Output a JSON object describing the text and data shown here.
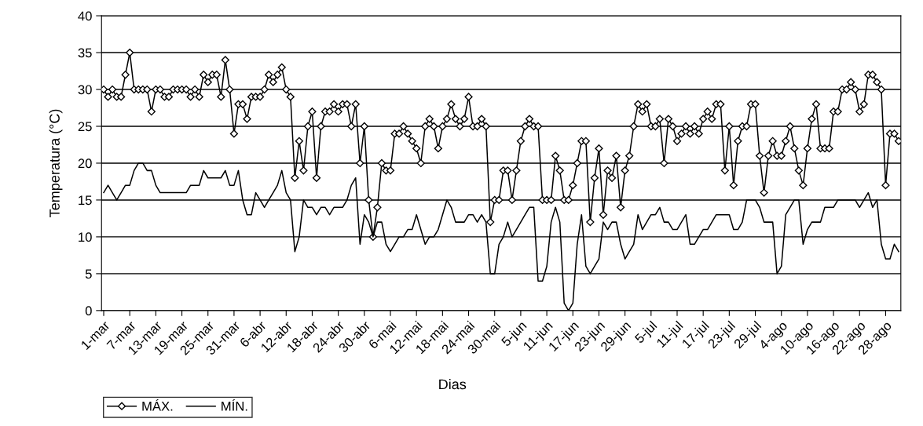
{
  "chart_data": {
    "type": "line",
    "ylabel": "Temperatura (°C)",
    "xlabel": "Dias",
    "categories": [
      "1-mar",
      null,
      null,
      null,
      null,
      null,
      "7-mar",
      null,
      null,
      null,
      null,
      null,
      "13-mar",
      null,
      null,
      null,
      null,
      null,
      "19-mar",
      null,
      null,
      null,
      null,
      null,
      "25-mar",
      null,
      null,
      null,
      null,
      null,
      "31-mar",
      null,
      null,
      null,
      null,
      null,
      "6-abr",
      null,
      null,
      null,
      null,
      null,
      "12-abr",
      null,
      null,
      null,
      null,
      null,
      "18-abr",
      null,
      null,
      null,
      null,
      null,
      "24-abr",
      null,
      null,
      null,
      null,
      null,
      "30-abr",
      null,
      null,
      null,
      null,
      null,
      "6-mai",
      null,
      null,
      null,
      null,
      null,
      "12-mai",
      null,
      null,
      null,
      null,
      null,
      "18-mai",
      null,
      null,
      null,
      null,
      null,
      "24-mai",
      null,
      null,
      null,
      null,
      null,
      "30-mai",
      null,
      null,
      null,
      null,
      null,
      "5-jun",
      null,
      null,
      null,
      null,
      null,
      "11-jun",
      null,
      null,
      null,
      null,
      null,
      "17-jun",
      null,
      null,
      null,
      null,
      null,
      "23-jun",
      null,
      null,
      null,
      null,
      null,
      "29-jun",
      null,
      null,
      null,
      null,
      null,
      "5-jul",
      null,
      null,
      null,
      null,
      null,
      "11-jul",
      null,
      null,
      null,
      null,
      null,
      "17-jul",
      null,
      null,
      null,
      null,
      null,
      "23-jul",
      null,
      null,
      null,
      null,
      null,
      "29-jul",
      null,
      null,
      null,
      null,
      null,
      "4-ago",
      null,
      null,
      null,
      null,
      null,
      "10-ago",
      null,
      null,
      null,
      null,
      null,
      "16-ago",
      null,
      null,
      null,
      null,
      null,
      "22-ago",
      null,
      null,
      null,
      null,
      null,
      "28-ago",
      null,
      null,
      null
    ],
    "series": [
      {
        "name": "MÁX.",
        "color": "#000000",
        "marker": "diamond",
        "values": [
          30,
          29,
          30,
          29,
          29,
          32,
          35,
          30,
          30,
          30,
          30,
          27,
          30,
          30,
          29,
          29,
          30,
          30,
          30,
          30,
          29,
          30,
          29,
          32,
          31,
          32,
          32,
          29,
          34,
          30,
          24,
          28,
          28,
          26,
          29,
          29,
          29,
          30,
          32,
          31,
          32,
          33,
          30,
          29,
          18,
          23,
          19,
          25,
          27,
          18,
          25,
          27,
          27,
          28,
          27,
          28,
          28,
          25,
          28,
          20,
          25,
          15,
          10,
          14,
          20,
          19,
          19,
          24,
          24,
          25,
          24,
          23,
          22,
          20,
          25,
          26,
          25,
          22,
          25,
          26,
          28,
          26,
          25,
          26,
          29,
          25,
          25,
          26,
          25,
          12,
          15,
          15,
          19,
          19,
          15,
          19,
          23,
          25,
          26,
          25,
          25,
          15,
          15,
          15,
          21,
          19,
          15,
          15,
          17,
          20,
          23,
          23,
          12,
          18,
          22,
          13,
          19,
          18,
          21,
          14,
          19,
          21,
          25,
          28,
          27,
          28,
          25,
          25,
          26,
          20,
          26,
          25,
          23,
          24,
          25,
          24,
          25,
          24,
          26,
          27,
          26,
          28,
          28,
          19,
          25,
          17,
          23,
          25,
          25,
          28,
          28,
          21,
          16,
          21,
          23,
          21,
          21,
          23,
          25,
          22,
          19,
          17,
          22,
          26,
          28,
          22,
          22,
          22,
          27,
          27,
          30,
          30,
          31,
          30,
          27,
          28,
          32,
          32,
          31,
          30,
          17,
          24,
          24,
          23
        ]
      },
      {
        "name": "MÍN.",
        "color": "#000000",
        "marker": "none",
        "values": [
          16,
          17,
          16,
          15,
          16,
          17,
          17,
          19,
          20,
          20,
          19,
          19,
          17,
          16,
          16,
          16,
          16,
          16,
          16,
          16,
          17,
          17,
          17,
          19,
          18,
          18,
          18,
          18,
          19,
          17,
          17,
          19,
          15,
          13,
          13,
          16,
          15,
          14,
          15,
          16,
          17,
          19,
          16,
          15,
          8,
          10,
          15,
          14,
          14,
          13,
          14,
          14,
          13,
          14,
          14,
          14,
          15,
          17,
          18,
          9,
          13,
          12,
          10,
          12,
          12,
          9,
          8,
          9,
          10,
          10,
          11,
          11,
          13,
          11,
          9,
          10,
          10,
          11,
          13,
          15,
          14,
          12,
          12,
          12,
          13,
          13,
          12,
          13,
          12,
          5,
          5,
          9,
          10,
          12,
          10,
          11,
          12,
          13,
          14,
          14,
          4,
          4,
          6,
          12,
          14,
          12,
          1,
          0,
          1,
          9,
          13,
          6,
          5,
          6,
          7,
          12,
          11,
          12,
          12,
          9,
          7,
          8,
          9,
          13,
          11,
          12,
          13,
          13,
          14,
          12,
          12,
          11,
          11,
          12,
          13,
          9,
          9,
          10,
          11,
          11,
          12,
          13,
          13,
          13,
          13,
          11,
          11,
          12,
          15,
          15,
          15,
          14,
          12,
          12,
          12,
          5,
          6,
          13,
          14,
          15,
          15,
          9,
          11,
          12,
          12,
          12,
          14,
          14,
          14,
          15,
          15,
          15,
          15,
          15,
          14,
          15,
          16,
          14,
          15,
          9,
          7,
          7,
          9,
          8
        ]
      }
    ],
    "ylim": [
      0,
      40
    ],
    "yticks": [
      0,
      5,
      10,
      15,
      20,
      25,
      30,
      35,
      40
    ],
    "grid": "y",
    "legend": "bottom left",
    "line_style": "solid"
  }
}
